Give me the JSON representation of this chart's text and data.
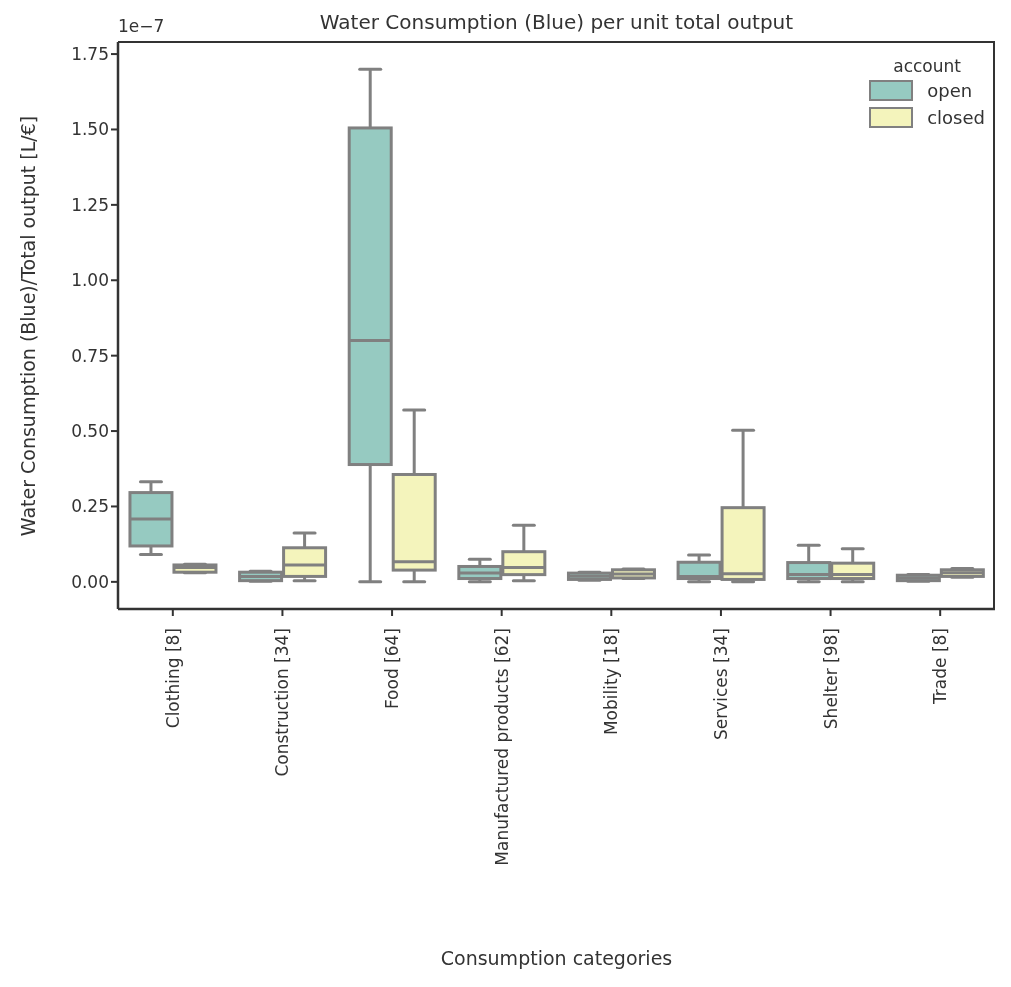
{
  "chart_data": {
    "type": "box",
    "title": "Water Consumption (Blue) per unit total output",
    "xlabel": "Consumption categories",
    "ylabel": "Water Consumption (Blue)/Total output [L/€]",
    "legend_title": "account",
    "legend": "top right",
    "annotations": [
      "1e−7"
    ],
    "categories": [
      "Clothing [8]",
      "Construction [34]",
      "Food [64]",
      "Manufactured products [62]",
      "Mobility [18]",
      "Services [34]",
      "Shelter [98]",
      "Trade [8]"
    ],
    "ylim": [
      -0.09,
      1.79
    ],
    "yticks": [
      {
        "value": 0,
        "label": "0.00"
      },
      {
        "value": 0.25,
        "label": "0.25"
      },
      {
        "value": 0.5,
        "label": "0.50"
      },
      {
        "value": 0.75,
        "label": "0.75"
      },
      {
        "value": 1,
        "label": "1.00"
      },
      {
        "value": 1.25,
        "label": "1.25"
      },
      {
        "value": 1.5,
        "label": "1.50"
      },
      {
        "value": 1.75,
        "label": "1.75"
      }
    ],
    "series": [
      {
        "name": "open",
        "color": "#96cac1",
        "boxes": [
          {
            "low": 0.091,
            "q1": 0.119,
            "median": 0.208,
            "q3": 0.296,
            "high": 0.332
          },
          {
            "low": 0.002,
            "q1": 0.004,
            "median": 0.018,
            "q3": 0.032,
            "high": 0.035
          },
          {
            "low": 0.0,
            "q1": 0.389,
            "median": 0.8,
            "q3": 1.505,
            "high": 1.7
          },
          {
            "low": 0.0,
            "q1": 0.011,
            "median": 0.029,
            "q3": 0.051,
            "high": 0.075
          },
          {
            "low": 0.005,
            "q1": 0.008,
            "median": 0.019,
            "q3": 0.029,
            "high": 0.032
          },
          {
            "low": 0.0,
            "q1": 0.011,
            "median": 0.018,
            "q3": 0.065,
            "high": 0.089
          },
          {
            "low": 0.0,
            "q1": 0.011,
            "median": 0.024,
            "q3": 0.064,
            "high": 0.121
          },
          {
            "low": 0.002,
            "q1": 0.004,
            "median": 0.013,
            "q3": 0.022,
            "high": 0.024
          }
        ]
      },
      {
        "name": "closed",
        "color": "#f4f4bc",
        "boxes": [
          {
            "low": 0.03,
            "q1": 0.032,
            "median": 0.048,
            "q3": 0.056,
            "high": 0.058
          },
          {
            "low": 0.004,
            "q1": 0.018,
            "median": 0.056,
            "q3": 0.113,
            "high": 0.162
          },
          {
            "low": 0.0,
            "q1": 0.039,
            "median": 0.067,
            "q3": 0.356,
            "high": 0.57
          },
          {
            "low": 0.004,
            "q1": 0.024,
            "median": 0.048,
            "q3": 0.1,
            "high": 0.188
          },
          {
            "low": 0.011,
            "q1": 0.013,
            "median": 0.026,
            "q3": 0.04,
            "high": 0.043
          },
          {
            "low": 0.0,
            "q1": 0.008,
            "median": 0.027,
            "q3": 0.246,
            "high": 0.503
          },
          {
            "low": 0.0,
            "q1": 0.011,
            "median": 0.024,
            "q3": 0.062,
            "high": 0.11
          },
          {
            "low": 0.015,
            "q1": 0.018,
            "median": 0.03,
            "q3": 0.04,
            "high": 0.044
          }
        ]
      }
    ]
  }
}
